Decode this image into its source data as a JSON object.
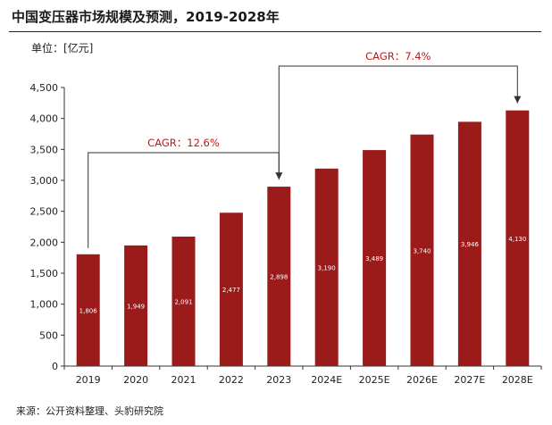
{
  "header": {
    "title": "中国变压器市场规模及预测，2019-2028年",
    "unit": "单位：[亿元]"
  },
  "footer": {
    "source": "来源：公开资料整理、头豹研究院"
  },
  "colors": {
    "bar": "#9b1b1b",
    "cagr_text": "#b71c1c",
    "connector": "#333333"
  },
  "chart_data": {
    "type": "bar",
    "categories": [
      "2019",
      "2020",
      "2021",
      "2022",
      "2023",
      "2024E",
      "2025E",
      "2026E",
      "2027E",
      "2028E"
    ],
    "values": [
      1806,
      1949,
      2091,
      2477,
      2898,
      3190,
      3489,
      3740,
      3946,
      4130
    ],
    "value_labels": [
      "1,806",
      "1,949",
      "2,091",
      "2,477",
      "2,898",
      "3,190",
      "3,489",
      "3,740",
      "3,946",
      "4,130"
    ],
    "ylim": [
      0,
      4500
    ],
    "yticks": [
      0,
      500,
      1000,
      1500,
      2000,
      2500,
      3000,
      3500,
      4000,
      4500
    ],
    "ytick_labels": [
      "0",
      "500",
      "1,000",
      "1,500",
      "2,000",
      "2,500",
      "3,000",
      "3,500",
      "4,000",
      "4,500"
    ],
    "grid": false,
    "annotations": [
      {
        "text": "CAGR：12.6%",
        "from": "2019",
        "to": "2023"
      },
      {
        "text": "CAGR：7.4%",
        "from": "2023",
        "to": "2028E"
      }
    ]
  }
}
